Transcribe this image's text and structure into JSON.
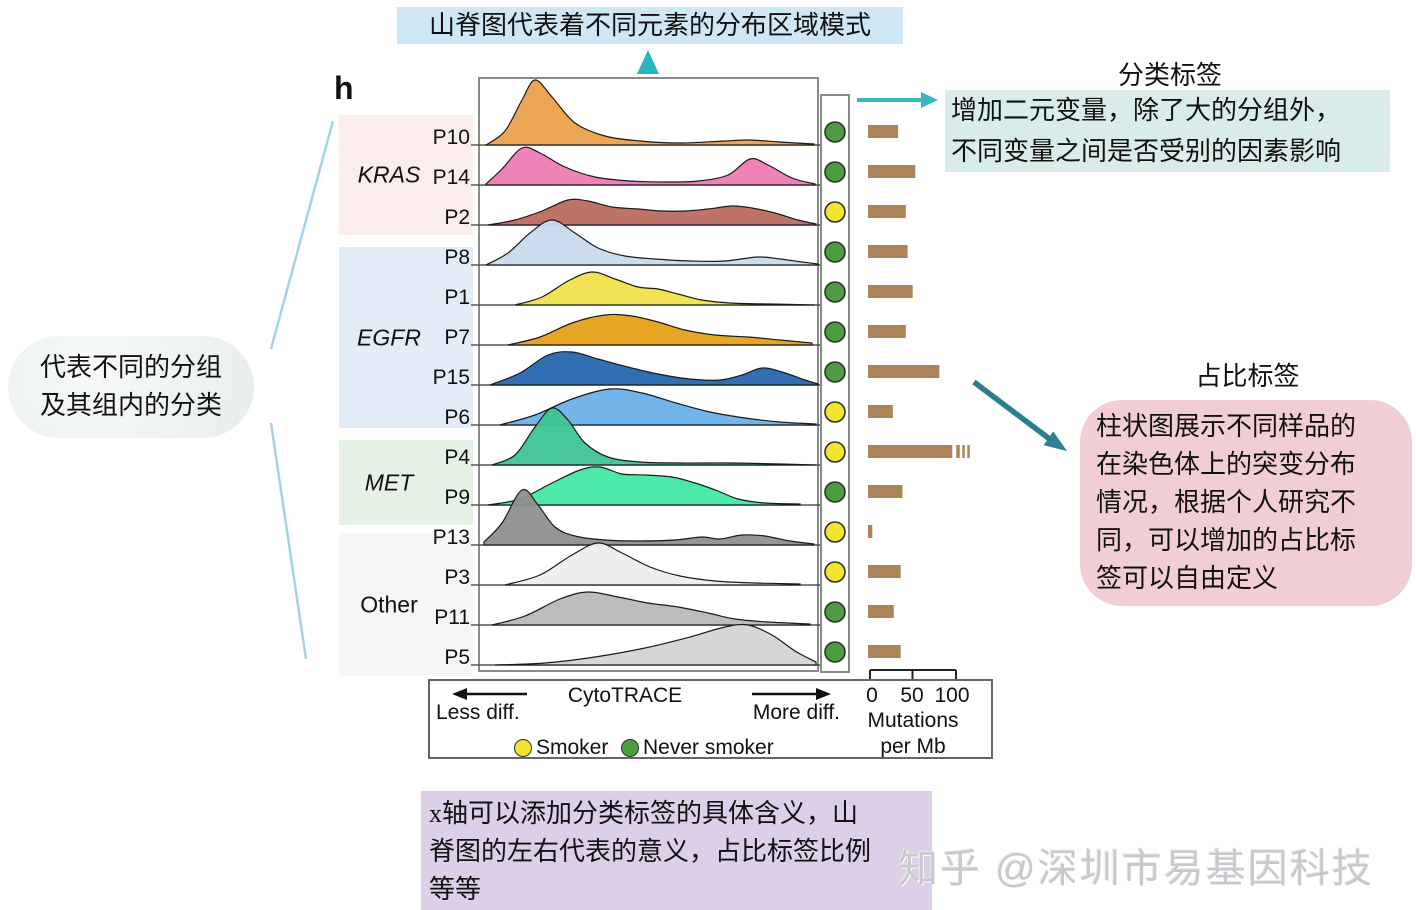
{
  "annotations": {
    "top_note": "山脊图代表着不同元素的分布区域模式",
    "category_title": "分类标签",
    "category_body": "增加二元变量，除了大的分组外，\n不同变量之间是否受别的因素影响",
    "group_bubble": "代表不同的分组\n及其组内的分类",
    "ratio_title": "占比标签",
    "ratio_body": "柱状图展示不同样品的\n在染色体上的突变分布\n情况，根据个人研究不\n同，可以增加的占比标\n签可以自由定义",
    "xaxis_note": "x轴可以添加分类标签的具体含义，山\n脊图的左右代表的意义，占比标签比例\n等等",
    "watermark": "知乎 @深圳市易基因科技"
  },
  "figure": {
    "panel_label": "h",
    "xaxis": {
      "title": "CytoTRACE",
      "left_label": "Less diff.",
      "right_label": "More diff."
    },
    "smoker_legend": [
      {
        "label": "Smoker",
        "color": "#f2e32e"
      },
      {
        "label": "Never smoker",
        "color": "#4e9c41"
      }
    ],
    "bar_axis": {
      "ticks": [
        "0",
        "50",
        "100"
      ],
      "label": "Mutations\nper Mb"
    }
  },
  "colors": {
    "accent_teal": "#2bb2bf",
    "arrow_teal": "#35b8c4",
    "arrow_dark_teal": "#2c7f91",
    "connector_blue": "#a5d2eb",
    "bar_brown": "#ad8457",
    "dot_outline": "#2f2f2f",
    "frame_gray": "#8a8a8a"
  },
  "chart_data": {
    "type": "area",
    "variant": "ridgeline",
    "title": "",
    "xlabel": "CytoTRACE (Less diff. → More diff.)",
    "bar_axis_label": "Mutations per Mb",
    "bar_axis_range": [
      0,
      100
    ],
    "legend_position": "bottom",
    "groups": [
      {
        "name": "KRAS",
        "color": "#fceded",
        "italic": true
      },
      {
        "name": "EGFR",
        "color": "#e3edf7",
        "italic": true
      },
      {
        "name": "MET",
        "color": "#e7f2e7",
        "italic": true
      },
      {
        "name": "Other",
        "color": "#f6f6f6",
        "italic": false
      }
    ],
    "patients": [
      {
        "label": "P10",
        "group": "KRAS",
        "fill": "#eba14a",
        "smoker": "Never smoker",
        "mutations_per_mb": 35,
        "overflow": false,
        "curve": [
          [
            6,
            0
          ],
          [
            25,
            14
          ],
          [
            42,
            45
          ],
          [
            55,
            65
          ],
          [
            72,
            48
          ],
          [
            95,
            22
          ],
          [
            125,
            9
          ],
          [
            160,
            4
          ],
          [
            200,
            2
          ],
          [
            245,
            4
          ],
          [
            270,
            5
          ],
          [
            300,
            3
          ],
          [
            334,
            1
          ]
        ]
      },
      {
        "label": "P14",
        "group": "KRAS",
        "fill": "#ee7cb5",
        "smoker": "Never smoker",
        "mutations_per_mb": 55,
        "overflow": false,
        "curve": [
          [
            6,
            1
          ],
          [
            22,
            16
          ],
          [
            42,
            37
          ],
          [
            60,
            32
          ],
          [
            85,
            18
          ],
          [
            115,
            8
          ],
          [
            150,
            4
          ],
          [
            185,
            3
          ],
          [
            218,
            4
          ],
          [
            248,
            10
          ],
          [
            270,
            26
          ],
          [
            288,
            20
          ],
          [
            312,
            7
          ],
          [
            335,
            1
          ]
        ]
      },
      {
        "label": "P2",
        "group": "KRAS",
        "fill": "#bc6a60",
        "smoker": "Smoker",
        "mutations_per_mb": 44,
        "overflow": false,
        "curve": [
          [
            8,
            0
          ],
          [
            35,
            5
          ],
          [
            62,
            14
          ],
          [
            88,
            25
          ],
          [
            108,
            24
          ],
          [
            132,
            18
          ],
          [
            158,
            16
          ],
          [
            182,
            14
          ],
          [
            205,
            14
          ],
          [
            228,
            16
          ],
          [
            252,
            19
          ],
          [
            272,
            17
          ],
          [
            295,
            12
          ],
          [
            318,
            5
          ],
          [
            336,
            1
          ]
        ]
      },
      {
        "label": "P8",
        "group": "EGFR",
        "fill": "#c9daee",
        "smoker": "Never smoker",
        "mutations_per_mb": 46,
        "overflow": false,
        "curve": [
          [
            6,
            0
          ],
          [
            28,
            12
          ],
          [
            50,
            32
          ],
          [
            72,
            45
          ],
          [
            95,
            32
          ],
          [
            118,
            17
          ],
          [
            145,
            9
          ],
          [
            175,
            6
          ],
          [
            210,
            4
          ],
          [
            245,
            4
          ],
          [
            278,
            8
          ],
          [
            300,
            6
          ],
          [
            322,
            3
          ],
          [
            338,
            1
          ]
        ]
      },
      {
        "label": "P1",
        "group": "EGFR",
        "fill": "#f0e24a",
        "smoker": "Never smoker",
        "mutations_per_mb": 52,
        "overflow": false,
        "curve": [
          [
            35,
            0
          ],
          [
            62,
            8
          ],
          [
            88,
            24
          ],
          [
            112,
            33
          ],
          [
            135,
            26
          ],
          [
            158,
            18
          ],
          [
            178,
            16
          ],
          [
            198,
            11
          ],
          [
            222,
            5
          ],
          [
            250,
            2
          ],
          [
            290,
            1
          ],
          [
            335,
            0
          ]
        ]
      },
      {
        "label": "P7",
        "group": "EGFR",
        "fill": "#e5a017",
        "smoker": "Never smoker",
        "mutations_per_mb": 44,
        "overflow": false,
        "curve": [
          [
            28,
            0
          ],
          [
            60,
            8
          ],
          [
            92,
            22
          ],
          [
            125,
            30
          ],
          [
            152,
            29
          ],
          [
            178,
            23
          ],
          [
            205,
            15
          ],
          [
            235,
            10
          ],
          [
            268,
            8
          ],
          [
            300,
            5
          ],
          [
            332,
            2
          ]
        ]
      },
      {
        "label": "P15",
        "group": "EGFR",
        "fill": "#2766af",
        "smoker": "Never smoker",
        "mutations_per_mb": 83,
        "overflow": false,
        "curve": [
          [
            10,
            0
          ],
          [
            40,
            12
          ],
          [
            68,
            30
          ],
          [
            92,
            33
          ],
          [
            118,
            26
          ],
          [
            148,
            18
          ],
          [
            178,
            11
          ],
          [
            210,
            6
          ],
          [
            240,
            5
          ],
          [
            262,
            10
          ],
          [
            282,
            17
          ],
          [
            302,
            13
          ],
          [
            325,
            5
          ],
          [
            338,
            1
          ]
        ]
      },
      {
        "label": "P6",
        "group": "EGFR",
        "fill": "#6cb0ea",
        "smoker": "Smoker",
        "mutations_per_mb": 29,
        "overflow": false,
        "curve": [
          [
            20,
            0
          ],
          [
            55,
            10
          ],
          [
            92,
            26
          ],
          [
            130,
            36
          ],
          [
            162,
            32
          ],
          [
            196,
            22
          ],
          [
            230,
            13
          ],
          [
            265,
            7
          ],
          [
            300,
            3
          ],
          [
            336,
            1
          ]
        ]
      },
      {
        "label": "P4",
        "group": "MET",
        "fill": "#3cc596",
        "smoker": "Smoker",
        "mutations_per_mb": 98,
        "overflow": true,
        "curve": [
          [
            12,
            0
          ],
          [
            35,
            10
          ],
          [
            55,
            38
          ],
          [
            72,
            57
          ],
          [
            88,
            45
          ],
          [
            105,
            22
          ],
          [
            128,
            8
          ],
          [
            160,
            3
          ],
          [
            200,
            2
          ],
          [
            250,
            2
          ],
          [
            300,
            1
          ],
          [
            336,
            0
          ]
        ]
      },
      {
        "label": "P9",
        "group": "MET",
        "fill": "#41e9a3",
        "smoker": "Never smoker",
        "mutations_per_mb": 40,
        "overflow": false,
        "curve": [
          [
            8,
            0
          ],
          [
            40,
            6
          ],
          [
            72,
            22
          ],
          [
            100,
            35
          ],
          [
            120,
            38
          ],
          [
            142,
            31
          ],
          [
            165,
            30
          ],
          [
            192,
            28
          ],
          [
            215,
            22
          ],
          [
            238,
            14
          ],
          [
            258,
            6
          ],
          [
            285,
            2
          ],
          [
            320,
            1
          ]
        ]
      },
      {
        "label": "P13",
        "group": "Other",
        "fill": "#8f8f8f",
        "smoker": "Smoker",
        "mutations_per_mb": 5,
        "overflow": false,
        "curve": [
          [
            4,
            3
          ],
          [
            22,
            22
          ],
          [
            42,
            55
          ],
          [
            58,
            40
          ],
          [
            75,
            18
          ],
          [
            95,
            9
          ],
          [
            125,
            5
          ],
          [
            160,
            4
          ],
          [
            195,
            5
          ],
          [
            222,
            8
          ],
          [
            240,
            6
          ],
          [
            262,
            10
          ],
          [
            285,
            9
          ],
          [
            310,
            4
          ],
          [
            334,
            1
          ]
        ]
      },
      {
        "label": "P3",
        "group": "Other",
        "fill": "#ededed",
        "smoker": "Smoker",
        "mutations_per_mb": 38,
        "overflow": false,
        "curve": [
          [
            25,
            0
          ],
          [
            60,
            10
          ],
          [
            92,
            30
          ],
          [
            118,
            42
          ],
          [
            142,
            32
          ],
          [
            170,
            18
          ],
          [
            200,
            9
          ],
          [
            235,
            4
          ],
          [
            275,
            2
          ],
          [
            320,
            1
          ]
        ]
      },
      {
        "label": "P11",
        "group": "Other",
        "fill": "#b9b9b9",
        "smoker": "Never smoker",
        "mutations_per_mb": 30,
        "overflow": false,
        "curve": [
          [
            12,
            0
          ],
          [
            45,
            9
          ],
          [
            80,
            26
          ],
          [
            108,
            33
          ],
          [
            138,
            28
          ],
          [
            168,
            22
          ],
          [
            198,
            18
          ],
          [
            228,
            12
          ],
          [
            255,
            6
          ],
          [
            288,
            3
          ],
          [
            330,
            1
          ]
        ]
      },
      {
        "label": "P5",
        "group": "Other",
        "fill": "#d4d4d4",
        "smoker": "Never smoker",
        "mutations_per_mb": 38,
        "overflow": false,
        "curve": [
          [
            15,
            0
          ],
          [
            65,
            2
          ],
          [
            115,
            8
          ],
          [
            165,
            17
          ],
          [
            210,
            28
          ],
          [
            245,
            38
          ],
          [
            268,
            40
          ],
          [
            292,
            30
          ],
          [
            315,
            14
          ],
          [
            336,
            3
          ]
        ]
      }
    ]
  }
}
